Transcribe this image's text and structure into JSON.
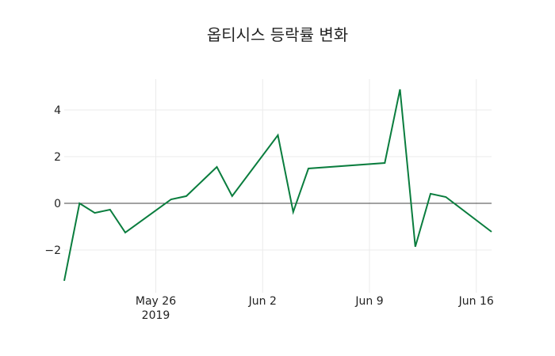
{
  "chart_data": {
    "type": "line",
    "title": "옵티시스 등락률 변화",
    "xlabel": "",
    "ylabel": "",
    "x": [
      "2019-05-20",
      "2019-05-21",
      "2019-05-22",
      "2019-05-23",
      "2019-05-24",
      "2019-05-27",
      "2019-05-28",
      "2019-05-30",
      "2019-05-31",
      "2019-06-03",
      "2019-06-04",
      "2019-06-05",
      "2019-06-10",
      "2019-06-11",
      "2019-06-12",
      "2019-06-13",
      "2019-06-14",
      "2019-06-17"
    ],
    "series": [
      {
        "name": "등락률",
        "color": "#0a7d3e",
        "values": [
          -3.32,
          0.0,
          -0.41,
          -0.27,
          -1.25,
          0.17,
          0.31,
          1.56,
          0.31,
          2.92,
          -0.37,
          1.49,
          1.73,
          4.88,
          -1.86,
          0.41,
          0.27,
          -1.22
        ]
      }
    ],
    "x_ticks": [
      {
        "date": "2019-05-26",
        "label": "May 26",
        "sublabel": "2019"
      },
      {
        "date": "2019-06-02",
        "label": "Jun 2",
        "sublabel": ""
      },
      {
        "date": "2019-06-09",
        "label": "Jun 9",
        "sublabel": ""
      },
      {
        "date": "2019-06-16",
        "label": "Jun 16",
        "sublabel": ""
      }
    ],
    "y_ticks": [
      {
        "value": 4,
        "label": "4"
      },
      {
        "value": 2,
        "label": "2"
      },
      {
        "value": 0,
        "label": "0"
      },
      {
        "value": -2,
        "label": "−2"
      }
    ],
    "xlim": [
      "2019-05-20",
      "2019-06-17"
    ],
    "ylim": [
      -3.32,
      5.4
    ],
    "grid": true,
    "zero_line": true,
    "legend": "none"
  }
}
